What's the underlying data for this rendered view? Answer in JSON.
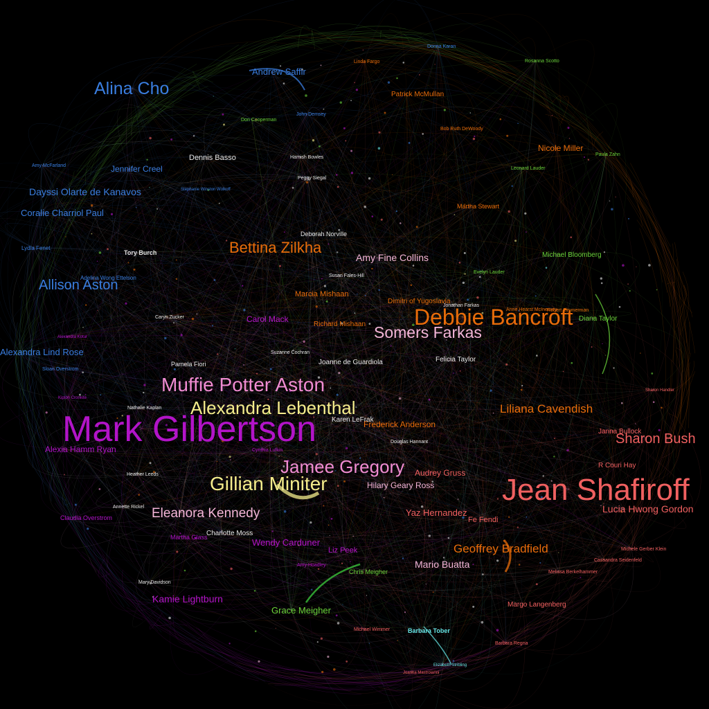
{
  "colors": {
    "background": "#000000",
    "blue": "#3a7ee0",
    "purple": "#b214c8",
    "pink": "#f08cd2",
    "light_pink": "#f4b6d8",
    "yellow": "#f4ec8c",
    "orange": "#e86c0a",
    "red": "#f06060",
    "green": "#6ad23a",
    "white": "#e6e6e6",
    "cyan": "#66e6e6"
  },
  "nodes": [
    {
      "label": "Mark Gilbertson",
      "color": "purple"
    },
    {
      "label": "Jean Shafiroff",
      "color": "red"
    },
    {
      "label": "Debbie Bancroft",
      "color": "orange"
    },
    {
      "label": "Muffie Potter Aston",
      "color": "pink"
    },
    {
      "label": "Alexandra Lebenthal",
      "color": "yellow"
    },
    {
      "label": "Gillian Miniter",
      "color": "yellow"
    },
    {
      "label": "Jamee Gregory",
      "color": "pink"
    },
    {
      "label": "Alina Cho",
      "color": "blue"
    },
    {
      "label": "Somers Farkas",
      "color": "light_pink"
    },
    {
      "label": "Bettina Zilkha",
      "color": "orange"
    },
    {
      "label": "Allison Aston",
      "color": "blue"
    },
    {
      "label": "Eleanora Kennedy",
      "color": "light_pink"
    },
    {
      "label": "Sharon Bush",
      "color": "red"
    },
    {
      "label": "Liliana Cavendish",
      "color": "orange"
    },
    {
      "label": "Geoffrey Bradfield",
      "color": "orange"
    },
    {
      "label": "Andrew Saffir",
      "color": "blue"
    },
    {
      "label": "Dayssi Olarte de Kanavos",
      "color": "blue"
    },
    {
      "label": "Lucia Hwong Gordon",
      "color": "red"
    },
    {
      "label": "Kamie Lightburn",
      "color": "purple"
    },
    {
      "label": "Alexandra Lind Rose",
      "color": "blue"
    },
    {
      "label": "Coralie Charriol Paul",
      "color": "blue"
    },
    {
      "label": "Jennifer Creel",
      "color": "blue"
    },
    {
      "label": "Amy Fine Collins",
      "color": "light_pink"
    },
    {
      "label": "Nicole Miller",
      "color": "orange"
    },
    {
      "label": "Grace Meigher",
      "color": "green"
    },
    {
      "label": "Mario Buatta",
      "color": "light_pink"
    },
    {
      "label": "Wendy Carduner",
      "color": "purple"
    },
    {
      "label": "Yaz Hernandez",
      "color": "red"
    },
    {
      "label": "Alexia Hamm Ryan",
      "color": "purple"
    },
    {
      "label": "Carol Mack",
      "color": "purple"
    },
    {
      "label": "Audrey Gruss",
      "color": "red"
    },
    {
      "label": "Hilary Geary Ross",
      "color": "light_pink"
    },
    {
      "label": "Frederick Anderson",
      "color": "orange"
    },
    {
      "label": "Michael Bloomberg",
      "color": "green"
    },
    {
      "label": "Patrick McMullan",
      "color": "orange"
    },
    {
      "label": "Margo Langenberg",
      "color": "red"
    },
    {
      "label": "Dennis Basso",
      "color": "white"
    },
    {
      "label": "Charlotte Moss",
      "color": "white"
    },
    {
      "label": "Liz Peek",
      "color": "purple"
    },
    {
      "label": "Marcia Mishaan",
      "color": "orange"
    },
    {
      "label": "Richard Mishaan",
      "color": "orange"
    },
    {
      "label": "Joanne de Guardiola",
      "color": "white"
    },
    {
      "label": "Felicia Taylor",
      "color": "white"
    },
    {
      "label": "Dimitri of Yugoslavia",
      "color": "orange"
    },
    {
      "label": "Diana Taylor",
      "color": "green"
    },
    {
      "label": "Karen LeFrak",
      "color": "white"
    },
    {
      "label": "Barbara Tober",
      "color": "cyan"
    },
    {
      "label": "Chris Meigher",
      "color": "green"
    },
    {
      "label": "Deborah Norville",
      "color": "white"
    },
    {
      "label": "Tory Burch",
      "color": "white"
    },
    {
      "label": "Pamela Fiori",
      "color": "white"
    },
    {
      "label": "Martha Stewart",
      "color": "orange"
    },
    {
      "label": "Claudia Overstrom",
      "color": "purple"
    },
    {
      "label": "Fe Fendi",
      "color": "red"
    },
    {
      "label": "R Couri Hay",
      "color": "red"
    },
    {
      "label": "Janna Bullock",
      "color": "red"
    },
    {
      "label": "Donna Karan",
      "color": "blue"
    },
    {
      "label": "Rosanna Scotto",
      "color": "green"
    },
    {
      "label": "Lydia Fenet",
      "color": "blue"
    },
    {
      "label": "Sloan Overstrom",
      "color": "blue"
    },
    {
      "label": "Cynthia Lufkin",
      "color": "purple"
    },
    {
      "label": "Amy Hoadley",
      "color": "purple"
    },
    {
      "label": "Mary Davidson",
      "color": "white"
    },
    {
      "label": "Susan Fales-Hill",
      "color": "white"
    },
    {
      "label": "Suzanne Cochran",
      "color": "white"
    },
    {
      "label": "Douglas Hannant",
      "color": "white"
    },
    {
      "label": "Amy McFarland",
      "color": "blue"
    },
    {
      "label": "Evelyn Lauder",
      "color": "green"
    },
    {
      "label": "Robert Zimmerman",
      "color": "orange"
    },
    {
      "label": "Leonard Lauder",
      "color": "green"
    },
    {
      "label": "Paula Zahn",
      "color": "green"
    },
    {
      "label": "Nathalie Kaplan",
      "color": "white"
    },
    {
      "label": "Annette Rickel",
      "color": "white"
    },
    {
      "label": "Michele Gerber Klein",
      "color": "red"
    },
    {
      "label": "Cassandra Seidenfeld",
      "color": "red"
    },
    {
      "label": "Melissa Berkelhammer",
      "color": "red"
    },
    {
      "label": "Barbara Regna",
      "color": "red"
    },
    {
      "label": "Elizabeth Stribling",
      "color": "cyan"
    },
    {
      "label": "Adelina Wong Ettelson",
      "color": "blue"
    },
    {
      "label": "Caryn Zucker",
      "color": "white"
    },
    {
      "label": "Linda Fargo",
      "color": "orange"
    },
    {
      "label": "Don Cooperman",
      "color": "green"
    },
    {
      "label": "Bob Ruth DeWoody",
      "color": "orange"
    },
    {
      "label": "Hamish Bowles",
      "color": "white"
    },
    {
      "label": "Peggy Siegal",
      "color": "white"
    },
    {
      "label": "John Demsey",
      "color": "blue"
    },
    {
      "label": "Stephanie Winston Wolkoff",
      "color": "blue"
    },
    {
      "label": "Michael Wimmer",
      "color": "red"
    },
    {
      "label": "Anne Hearst McInerney",
      "color": "orange"
    },
    {
      "label": "Sharon Handler",
      "color": "red"
    },
    {
      "label": "Heather Leeds",
      "color": "white"
    },
    {
      "label": "Martha Glass",
      "color": "purple"
    },
    {
      "label": "Jonathan Farkas",
      "color": "white"
    },
    {
      "label": "Joanna Mastroianni",
      "color": "red"
    },
    {
      "label": "Alexandra Kotur",
      "color": "purple"
    },
    {
      "label": "Kipton Cronkite",
      "color": "purple"
    }
  ]
}
